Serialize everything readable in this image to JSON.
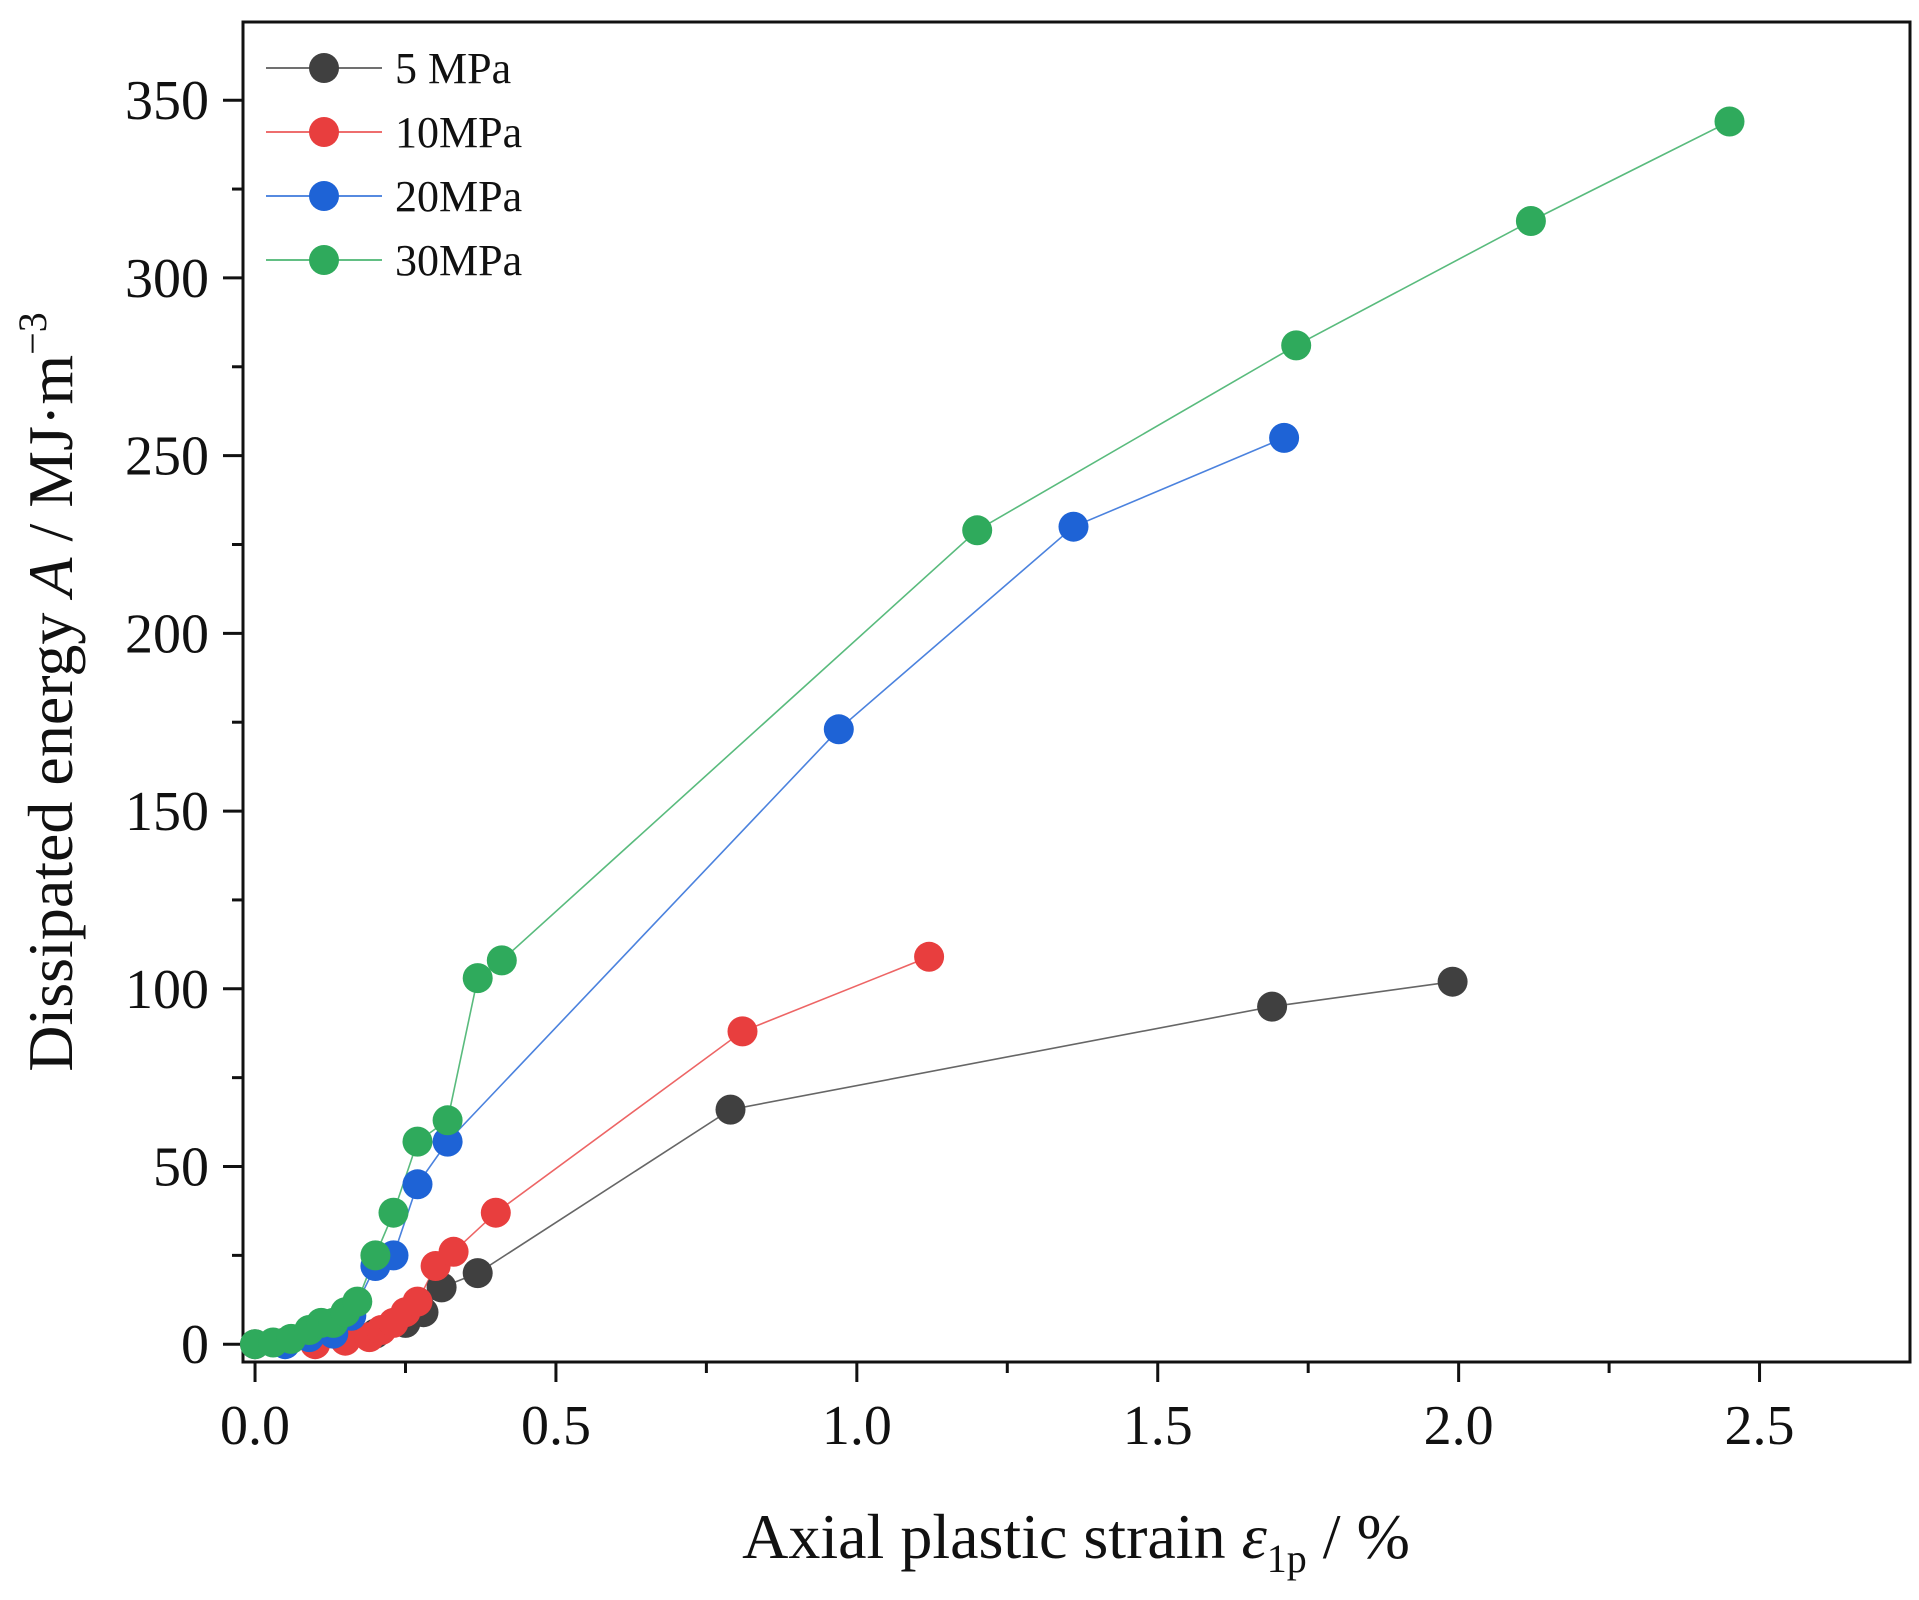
{
  "chart_data": {
    "type": "scatter",
    "title": "",
    "xlabel": {
      "prefix": "Axial plastic strain ",
      "symbol": "ε",
      "subscript": "1p",
      "suffix": " / %"
    },
    "ylabel": {
      "prefix": "Dissipated energy ",
      "symbol": "A",
      "unit": " / MJ·m",
      "superscript": "−3"
    },
    "xlim": [
      -0.02,
      2.75
    ],
    "ylim": [
      -5,
      372
    ],
    "xticks": [
      "0.0",
      "0.5",
      "1.0",
      "1.5",
      "2.0",
      "2.5"
    ],
    "xtick_values": [
      0,
      0.5,
      1.0,
      1.5,
      2.0,
      2.5
    ],
    "yticks": [
      "0",
      "50",
      "100",
      "150",
      "200",
      "250",
      "300",
      "350"
    ],
    "ytick_values": [
      0,
      50,
      100,
      150,
      200,
      250,
      300,
      350
    ],
    "grid": false,
    "legend_position": "top-left",
    "series": [
      {
        "name": " 5 MPa",
        "color": "#404040",
        "x": [
          0.0,
          0.05,
          0.1,
          0.15,
          0.2,
          0.25,
          0.28,
          0.31,
          0.37,
          0.79,
          1.69,
          1.99
        ],
        "y": [
          0,
          0.5,
          1,
          1.5,
          3,
          6,
          9,
          16,
          20,
          66,
          95,
          102
        ]
      },
      {
        "name": "10MPa",
        "color": "#e83e3e",
        "x": [
          0.1,
          0.15,
          0.19,
          0.21,
          0.23,
          0.25,
          0.27,
          0.3,
          0.33,
          0.4,
          0.81,
          1.12
        ],
        "y": [
          0,
          1,
          2,
          4,
          6,
          9,
          12,
          22,
          26,
          37,
          88,
          109
        ]
      },
      {
        "name": "20MPa",
        "color": "#1e63d6",
        "x": [
          0.05,
          0.09,
          0.13,
          0.16,
          0.2,
          0.23,
          0.27,
          0.32,
          0.97,
          1.36,
          1.71
        ],
        "y": [
          0,
          2,
          3,
          8,
          22,
          25,
          45,
          57,
          173,
          230,
          255
        ]
      },
      {
        "name": "30MPa",
        "color": "#2faa5c",
        "x": [
          0.0,
          0.03,
          0.06,
          0.09,
          0.11,
          0.13,
          0.15,
          0.17,
          0.2,
          0.23,
          0.27,
          0.32,
          0.37,
          0.41,
          1.2,
          1.73,
          2.12,
          2.45
        ],
        "y": [
          0,
          0.5,
          1.5,
          4,
          6,
          6,
          9,
          12,
          25,
          37,
          57,
          63,
          103,
          108,
          229,
          281,
          316,
          344
        ]
      }
    ]
  }
}
